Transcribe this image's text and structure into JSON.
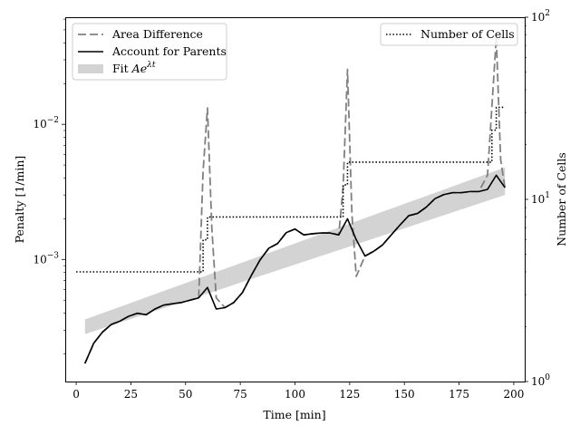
{
  "chart_data": {
    "type": "line",
    "xlabel": "Time [min]",
    "ylabel_left": "Penalty [1/min]",
    "ylabel_right": "Number of Cells",
    "xlim": [
      -5,
      205
    ],
    "ylim_left": [
      0.000125,
      0.062
    ],
    "yscale_left": "log",
    "ylim_right": [
      1,
      100
    ],
    "yscale_right": "log",
    "x_ticks": [
      0,
      25,
      50,
      75,
      100,
      125,
      150,
      175,
      200
    ],
    "y_left_ticks": [
      {
        "value": 0.001,
        "base": "10",
        "exp": "−3"
      },
      {
        "value": 0.01,
        "base": "10",
        "exp": "−2"
      }
    ],
    "y_right_ticks": [
      {
        "value": 1,
        "base": "10",
        "exp": "0"
      },
      {
        "value": 10,
        "base": "10",
        "exp": "1"
      },
      {
        "value": 100,
        "base": "10",
        "exp": "2"
      }
    ],
    "legend_left_position": "upper-left",
    "legend_right_position": "upper-right",
    "series": [
      {
        "name": "Area Difference",
        "axis": "left",
        "style": "dashed",
        "color": "#808080",
        "x": [
          4,
          8,
          12,
          16,
          20,
          24,
          28,
          32,
          36,
          40,
          44,
          48,
          52,
          56,
          58,
          60,
          62,
          64,
          68,
          72,
          76,
          80,
          84,
          88,
          92,
          96,
          100,
          104,
          108,
          112,
          116,
          120,
          122,
          124,
          126,
          128,
          132,
          136,
          140,
          144,
          148,
          152,
          156,
          160,
          164,
          168,
          172,
          176,
          180,
          184,
          188,
          190,
          192,
          194,
          196
        ],
        "y": [
          0.00017,
          0.00024,
          0.00029,
          0.00033,
          0.00035,
          0.00038,
          0.0004,
          0.00039,
          0.00043,
          0.00046,
          0.00047,
          0.00048,
          0.0005,
          0.00052,
          0.0045,
          0.0132,
          0.0017,
          0.00052,
          0.00044,
          0.00048,
          0.00057,
          0.00076,
          0.00099,
          0.00121,
          0.00131,
          0.00158,
          0.00168,
          0.00152,
          0.00155,
          0.00157,
          0.00157,
          0.00152,
          0.0034,
          0.0255,
          0.0022,
          0.00075,
          0.00106,
          0.00115,
          0.00128,
          0.00152,
          0.0018,
          0.00211,
          0.00219,
          0.00244,
          0.00282,
          0.00302,
          0.00312,
          0.00312,
          0.00318,
          0.00318,
          0.0042,
          0.0135,
          0.044,
          0.0055,
          0.00335
        ]
      },
      {
        "name": "Account for Parents",
        "axis": "left",
        "style": "solid",
        "color": "#000000",
        "x": [
          4,
          8,
          12,
          16,
          20,
          24,
          28,
          32,
          36,
          40,
          44,
          48,
          52,
          56,
          60,
          64,
          68,
          72,
          76,
          80,
          84,
          88,
          92,
          96,
          100,
          104,
          108,
          112,
          116,
          120,
          124,
          128,
          132,
          136,
          140,
          144,
          148,
          152,
          156,
          160,
          164,
          168,
          172,
          176,
          180,
          184,
          188,
          192,
          196
        ],
        "y": [
          0.00017,
          0.00024,
          0.00029,
          0.00033,
          0.00035,
          0.00038,
          0.0004,
          0.00039,
          0.00043,
          0.00046,
          0.00047,
          0.00048,
          0.0005,
          0.00052,
          0.00062,
          0.00043,
          0.00044,
          0.00048,
          0.00057,
          0.00076,
          0.00099,
          0.00121,
          0.00131,
          0.00158,
          0.00168,
          0.00152,
          0.00155,
          0.00157,
          0.00157,
          0.00152,
          0.002,
          0.0014,
          0.00106,
          0.00115,
          0.00128,
          0.00152,
          0.0018,
          0.00211,
          0.00219,
          0.00244,
          0.00282,
          0.00302,
          0.00312,
          0.00312,
          0.00318,
          0.00318,
          0.0033,
          0.0042,
          0.0034
        ]
      },
      {
        "name": "Number of Cells",
        "axis": "right",
        "style": "dotted",
        "color": "#000000",
        "x": [
          0,
          56,
          58,
          60,
          120,
          122,
          124,
          188,
          190,
          192,
          196
        ],
        "y": [
          4,
          4,
          6,
          8,
          8,
          12,
          16,
          16,
          24,
          32,
          32
        ]
      }
    ],
    "fit_band": {
      "name": "Fit",
      "name_math": "Ae",
      "name_exp": "λt",
      "color": "#d3d3d3",
      "x": [
        4,
        196
      ],
      "lower": [
        0.00028,
        0.003
      ],
      "upper": [
        0.00036,
        0.0048
      ]
    }
  }
}
